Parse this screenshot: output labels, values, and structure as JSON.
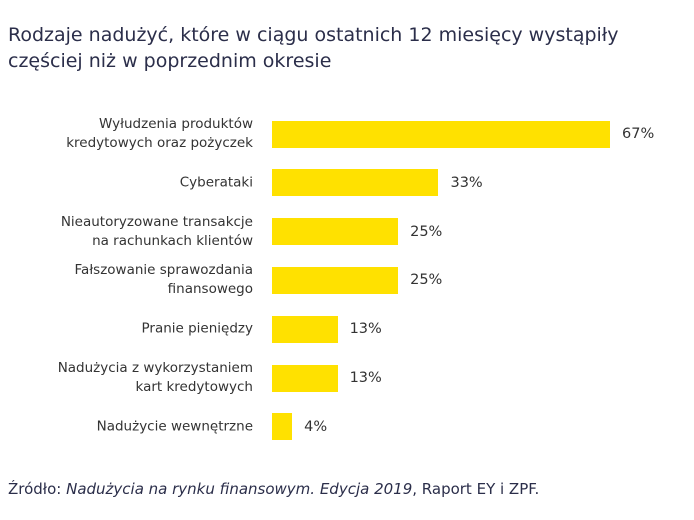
{
  "chart_data": {
    "type": "bar",
    "orientation": "horizontal",
    "title": "Rodzaje nadużyć, które w ciągu ostatnich 12 miesięcy wystąpiły częściej niż w poprzednim okresie",
    "categories": [
      "Wyłudzenia produktów\nkredytowych oraz pożyczek",
      "Cyberataki",
      "Nieautoryzowane transakcje\nna rachunkach klientów",
      "Fałszowanie sprawozdania\nfinansowego",
      "Pranie pieniędzy",
      "Nadużycia z wykorzystaniem\nkart kredytowych",
      "Nadużycie wewnętrzne"
    ],
    "values": [
      67,
      33,
      25,
      25,
      13,
      13,
      4
    ],
    "value_labels": [
      "67%",
      "33%",
      "25%",
      "25%",
      "13%",
      "13%",
      "4%"
    ],
    "color": "#ffe100",
    "source": {
      "prefix": "Źródło:",
      "title": "Nadużycia na rynku finansowym. Edycja 2019",
      "suffix": ", Raport EY i ZPF."
    }
  }
}
